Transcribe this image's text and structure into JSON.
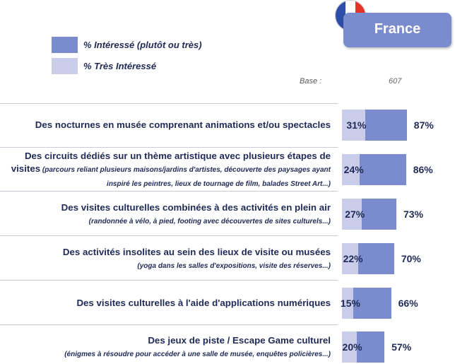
{
  "header": {
    "country": "France",
    "base_label": "Base :",
    "base_value": "607"
  },
  "legend": [
    {
      "label": "% Intéressé (plutôt ou très)",
      "color": "#7a8ccd"
    },
    {
      "label": "% Très Intéressé",
      "color": "#c9cdea"
    }
  ],
  "colors": {
    "interesse": "#7a8ccd",
    "tres_interesse": "#c9cdea",
    "text": "#1f2a56",
    "flag_blue": "#2e4da7",
    "flag_red": "#e5332a"
  },
  "icons": [
    "france-flag-icon"
  ],
  "chart_data": {
    "type": "bar",
    "orientation": "horizontal",
    "xlim": [
      0,
      100
    ],
    "categories": [
      "Des nocturnes en musée comprenant animations et/ou spectacles",
      "Des circuits dédiés sur un thème artistique avec plusieurs étapes de visites",
      "Des visites culturelles combinées à des activités en plein air",
      "Des activités insolites au sein des lieux de visite ou musées",
      "Des visites culturelles à l'aide d'applications numériques",
      "Des jeux de piste / Escape Game culturel"
    ],
    "subtitles": [
      "",
      "(parcours reliant plusieurs maisons/jardins d'artistes, découverte des paysages ayant inspiré les peintres, lieux de tournage de film, balades Street Art...)",
      "(randonnée à vélo, à pied, footing avec découvertes de sites culturels...)",
      "(yoga dans les salles d'expositions, visite des réserves...)",
      "",
      "(énigmes à résoudre pour accéder à une salle de musée, enquêtes policières...)"
    ],
    "series": [
      {
        "name": "% Intéressé (plutôt ou très)",
        "values": [
          87,
          86,
          73,
          70,
          66,
          57
        ],
        "labels": [
          "87%",
          "86%",
          "73%",
          "70%",
          "66%",
          "57%"
        ]
      },
      {
        "name": "% Très Intéressé",
        "values": [
          31,
          24,
          27,
          22,
          15,
          20
        ],
        "labels": [
          "31%",
          "24%",
          "27%",
          "22%",
          "15%",
          "20%"
        ]
      }
    ]
  }
}
